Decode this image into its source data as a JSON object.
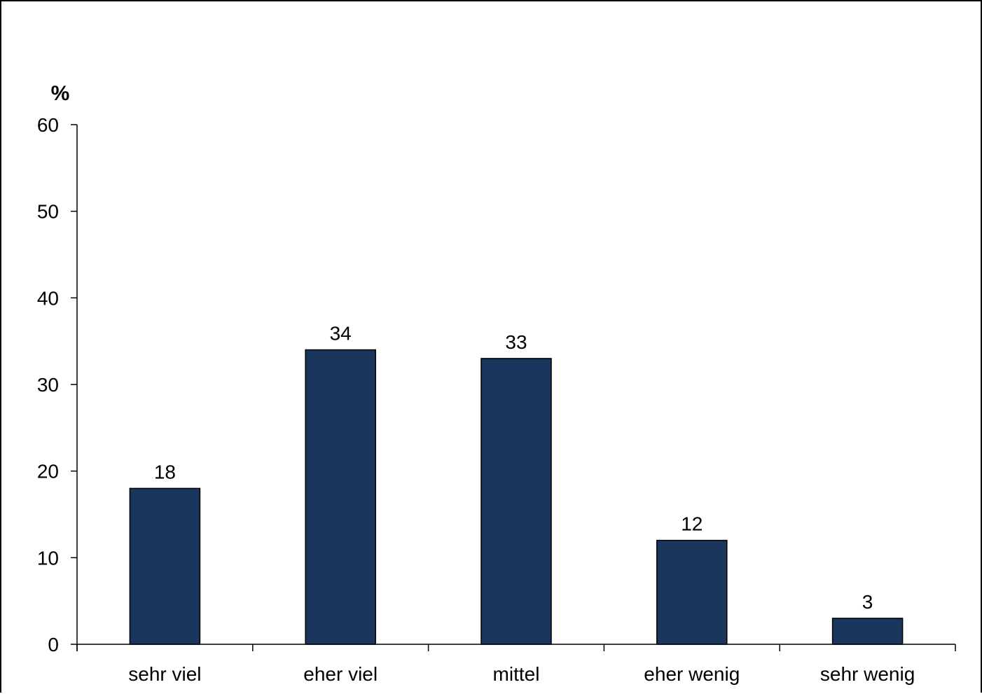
{
  "chart_data": {
    "type": "bar",
    "title": "",
    "xlabel": "",
    "ylabel": "%",
    "categories": [
      "sehr viel",
      "eher viel",
      "mittel",
      "eher wenig",
      "sehr wenig"
    ],
    "values": [
      18,
      34,
      33,
      12,
      3
    ],
    "data_labels": [
      "18",
      "34",
      "33",
      "12",
      "3"
    ],
    "ylim": [
      0,
      60
    ],
    "yticks": [
      "0",
      "10",
      "20",
      "30",
      "40",
      "50",
      "60"
    ],
    "grid": false,
    "legend": "none",
    "colors": {
      "bar": "#1b365d",
      "bar_outline": "#000000",
      "axis": "#000000"
    }
  }
}
